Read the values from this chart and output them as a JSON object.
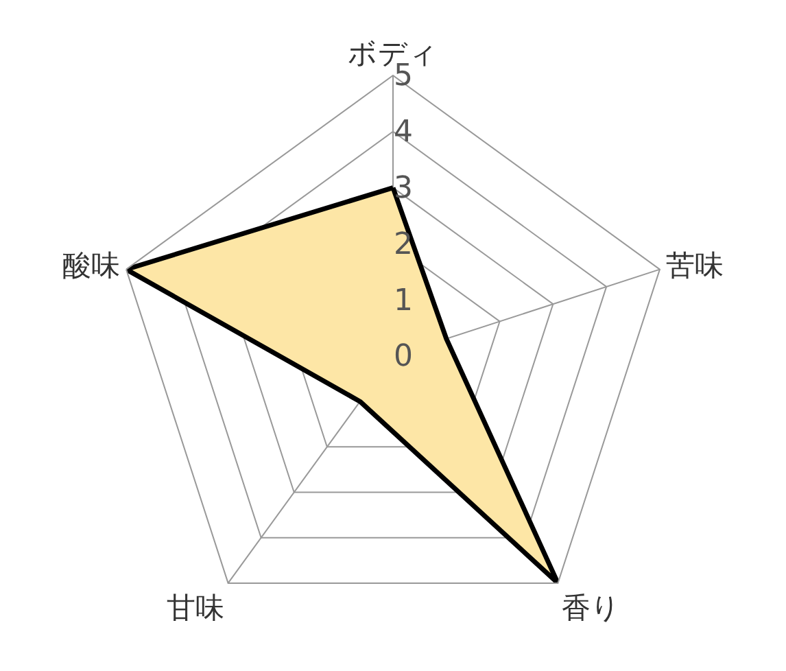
{
  "chart_data": {
    "type": "radar",
    "categories": [
      "ボディ",
      "苦味",
      "香り",
      "甘味",
      "酸味"
    ],
    "series": [
      {
        "color": "#fde6a6",
        "values": [
          3,
          1,
          5,
          1,
          5
        ]
      }
    ],
    "ylim": [
      0,
      5
    ],
    "yticks": [
      0,
      1,
      2,
      3,
      4,
      5
    ],
    "grid": true,
    "legend": false,
    "marker": "none",
    "line_style": "solid"
  }
}
